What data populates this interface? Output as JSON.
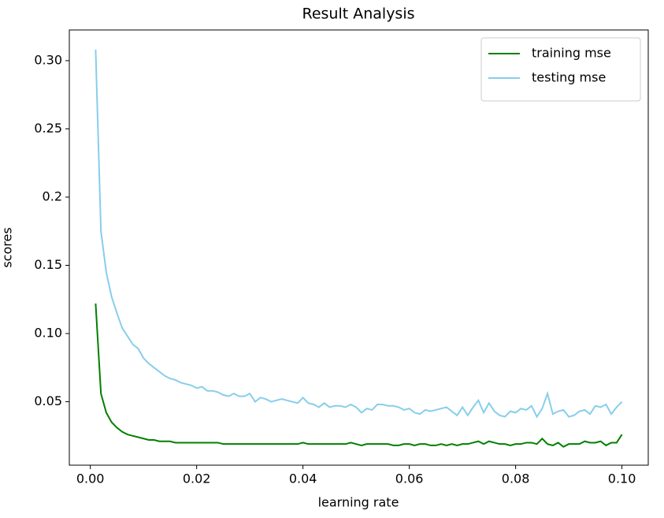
{
  "chart_data": {
    "type": "line",
    "title": "Result Analysis",
    "x_label": "learning rate",
    "y_label": "scores",
    "x": [
      0.001,
      0.002,
      0.003,
      0.004,
      0.005,
      0.006,
      0.007,
      0.008,
      0.009,
      0.01,
      0.011,
      0.012,
      0.013,
      0.014,
      0.015,
      0.016,
      0.017,
      0.018,
      0.019,
      0.02,
      0.021,
      0.022,
      0.023,
      0.024,
      0.025,
      0.026,
      0.027,
      0.028,
      0.029,
      0.03,
      0.031,
      0.032,
      0.033,
      0.034,
      0.035,
      0.036,
      0.037,
      0.038,
      0.039,
      0.04,
      0.041,
      0.042,
      0.043,
      0.044,
      0.045,
      0.046,
      0.047,
      0.048,
      0.049,
      0.05,
      0.051,
      0.052,
      0.053,
      0.054,
      0.055,
      0.056,
      0.057,
      0.058,
      0.059,
      0.06,
      0.061,
      0.062,
      0.063,
      0.064,
      0.065,
      0.066,
      0.067,
      0.068,
      0.069,
      0.07,
      0.071,
      0.072,
      0.073,
      0.074,
      0.075,
      0.076,
      0.077,
      0.078,
      0.079,
      0.08,
      0.081,
      0.082,
      0.083,
      0.084,
      0.085,
      0.086,
      0.087,
      0.088,
      0.089,
      0.09,
      0.091,
      0.092,
      0.093,
      0.094,
      0.095,
      0.096,
      0.097,
      0.098,
      0.099,
      0.1
    ],
    "series": [
      {
        "name": "training mse",
        "color": "#008000",
        "values": [
          0.122,
          0.056,
          0.042,
          0.035,
          0.031,
          0.028,
          0.026,
          0.025,
          0.024,
          0.023,
          0.022,
          0.022,
          0.021,
          0.021,
          0.021,
          0.02,
          0.02,
          0.02,
          0.02,
          0.02,
          0.02,
          0.02,
          0.02,
          0.02,
          0.019,
          0.019,
          0.019,
          0.019,
          0.019,
          0.019,
          0.019,
          0.019,
          0.019,
          0.019,
          0.019,
          0.019,
          0.019,
          0.019,
          0.019,
          0.02,
          0.019,
          0.019,
          0.019,
          0.019,
          0.019,
          0.019,
          0.019,
          0.019,
          0.02,
          0.019,
          0.018,
          0.019,
          0.019,
          0.019,
          0.019,
          0.019,
          0.018,
          0.018,
          0.019,
          0.019,
          0.018,
          0.019,
          0.019,
          0.018,
          0.018,
          0.019,
          0.018,
          0.019,
          0.018,
          0.019,
          0.019,
          0.02,
          0.021,
          0.019,
          0.021,
          0.02,
          0.019,
          0.019,
          0.018,
          0.019,
          0.019,
          0.02,
          0.02,
          0.019,
          0.023,
          0.019,
          0.018,
          0.02,
          0.017,
          0.019,
          0.019,
          0.019,
          0.021,
          0.02,
          0.02,
          0.021,
          0.018,
          0.02,
          0.02,
          0.026
        ]
      },
      {
        "name": "testing mse",
        "color": "#87ceeb",
        "values": [
          0.308,
          0.175,
          0.145,
          0.127,
          0.115,
          0.104,
          0.098,
          0.092,
          0.089,
          0.082,
          0.078,
          0.075,
          0.072,
          0.069,
          0.067,
          0.066,
          0.064,
          0.063,
          0.062,
          0.06,
          0.061,
          0.058,
          0.058,
          0.057,
          0.055,
          0.054,
          0.056,
          0.054,
          0.054,
          0.056,
          0.05,
          0.053,
          0.052,
          0.05,
          0.051,
          0.052,
          0.051,
          0.05,
          0.049,
          0.053,
          0.049,
          0.048,
          0.046,
          0.049,
          0.046,
          0.047,
          0.047,
          0.046,
          0.048,
          0.046,
          0.042,
          0.045,
          0.044,
          0.048,
          0.048,
          0.047,
          0.047,
          0.046,
          0.044,
          0.045,
          0.042,
          0.041,
          0.044,
          0.043,
          0.044,
          0.045,
          0.046,
          0.043,
          0.04,
          0.046,
          0.04,
          0.046,
          0.051,
          0.042,
          0.049,
          0.043,
          0.04,
          0.039,
          0.043,
          0.042,
          0.045,
          0.044,
          0.047,
          0.039,
          0.045,
          0.056,
          0.041,
          0.043,
          0.044,
          0.039,
          0.04,
          0.043,
          0.044,
          0.041,
          0.047,
          0.046,
          0.048,
          0.041,
          0.046,
          0.05
        ]
      }
    ],
    "xlim": [
      -0.00395,
      0.10495
    ],
    "ylim": [
      0.0035,
      0.3225
    ],
    "xticks": [
      {
        "value": 0,
        "label": "0.00"
      },
      0.02,
      0.04,
      0.06,
      0.08,
      {
        "value": 0.1,
        "label": "0.10"
      }
    ],
    "yticks": [
      0.05,
      {
        "value": 0.1,
        "label": "0.10"
      },
      0.15,
      0.2,
      0.25,
      {
        "value": 0.3,
        "label": "0.30"
      }
    ],
    "legend": "upper right"
  }
}
